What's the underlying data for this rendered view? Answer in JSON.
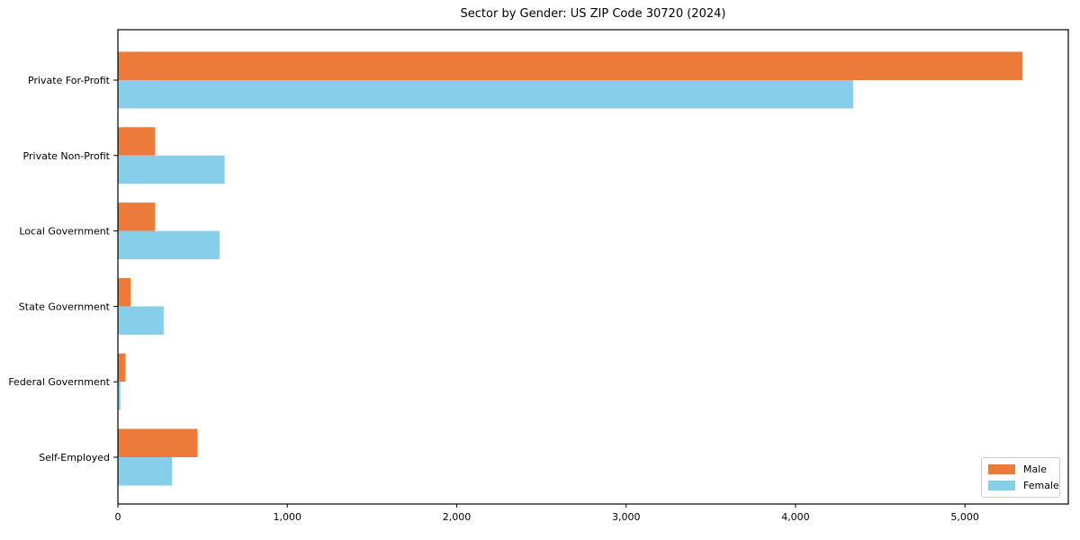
{
  "chart_data": {
    "type": "bar",
    "orientation": "horizontal",
    "title": "Sector by Gender: US ZIP Code 30720 (2024)",
    "categories": [
      "Private For-Profit",
      "Private Non-Profit",
      "Local Government",
      "State Government",
      "Federal Government",
      "Self-Employed"
    ],
    "series": [
      {
        "name": "Male",
        "color": "#EB7A3B",
        "values": [
          5340,
          220,
          220,
          75,
          45,
          470
        ]
      },
      {
        "name": "Female",
        "color": "#87CEEB",
        "values": [
          4340,
          630,
          600,
          270,
          15,
          320
        ]
      }
    ],
    "x_ticks": [
      0,
      1000,
      2000,
      3000,
      4000,
      5000
    ],
    "x_tick_labels": [
      "0",
      "1,000",
      "2,000",
      "3,000",
      "4,000",
      "5,000"
    ],
    "xlim": [
      0,
      5610
    ],
    "xlabel": "",
    "ylabel": "",
    "grid": false,
    "legend_position": "lower right",
    "frame_color": "#000000",
    "background_color": "#ffffff"
  }
}
